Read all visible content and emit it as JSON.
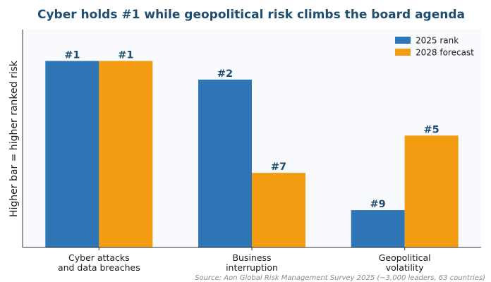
{
  "chart_data": {
    "type": "bar",
    "title": "Cyber holds #1 while geopolitical risk climbs the board agenda",
    "ylabel": "Higher bar = higher ranked risk",
    "xlabel": "",
    "categories": [
      [
        "Cyber attacks",
        "and data breaches"
      ],
      [
        "Business",
        "interruption"
      ],
      [
        "Geopolitical",
        "volatility"
      ]
    ],
    "series": [
      {
        "name": "2025 rank",
        "color": "#2e75b6",
        "ranks": [
          1,
          2,
          9
        ],
        "labels": [
          "#1",
          "#2",
          "#9"
        ]
      },
      {
        "name": "2028 forecast",
        "color": "#f39c12",
        "ranks": [
          1,
          7,
          5
        ],
        "labels": [
          "#1",
          "#7",
          "#5"
        ]
      }
    ],
    "value_transform": "bar height = 11 - rank",
    "ylim": [
      0,
      11
    ],
    "legend_position": "top-right",
    "grid": false,
    "source": "Source: Aon Global Risk Management Survey 2025 (~3,000 leaders, 63 countries)"
  }
}
